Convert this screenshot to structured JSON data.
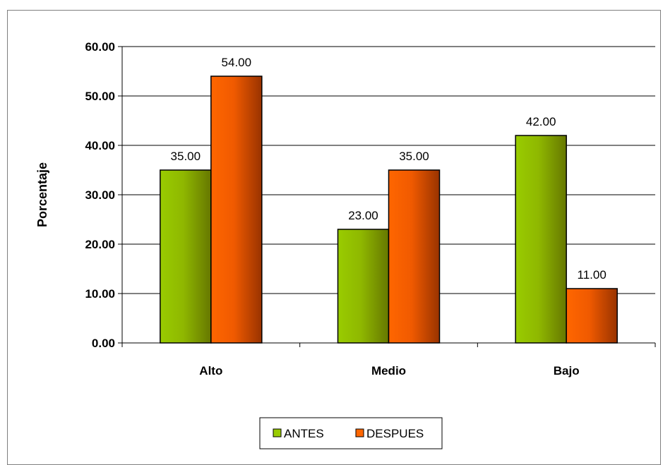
{
  "chart_data": {
    "type": "bar",
    "categories": [
      "Alto",
      "Medio",
      "Bajo"
    ],
    "series": [
      {
        "name": "ANTES",
        "values": [
          35.0,
          23.0,
          42.0
        ],
        "color": "#99cc00"
      },
      {
        "name": "DESPUES",
        "values": [
          54.0,
          35.0,
          11.0
        ],
        "color": "#ff6600"
      }
    ],
    "ylabel": "Porcentaje",
    "xlabel": "",
    "ylim": [
      0,
      60
    ],
    "yticks": [
      "0.00",
      "10.00",
      "20.00",
      "30.00",
      "40.00",
      "50.00",
      "60.00"
    ],
    "data_labels": [
      [
        "35.00",
        "23.00",
        "42.00"
      ],
      [
        "54.00",
        "35.00",
        "11.00"
      ]
    ],
    "grid": true,
    "legend_position": "bottom"
  }
}
